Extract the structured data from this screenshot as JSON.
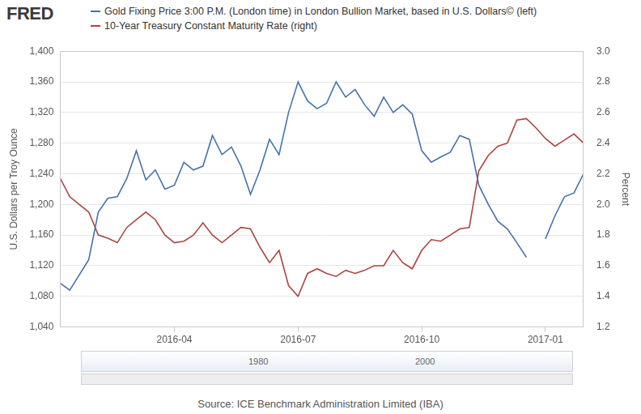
{
  "chart_data": {
    "type": "line",
    "logo": "FRED",
    "categories": [
      null,
      null,
      null,
      null,
      null,
      null,
      null,
      null,
      null,
      null,
      null,
      null,
      "2016-04",
      null,
      null,
      null,
      null,
      null,
      null,
      null,
      null,
      null,
      null,
      null,
      null,
      "2016-07",
      null,
      null,
      null,
      null,
      null,
      null,
      null,
      null,
      null,
      null,
      null,
      null,
      "2016-10",
      null,
      null,
      null,
      null,
      null,
      null,
      null,
      null,
      null,
      null,
      null,
      null,
      "2017-01",
      null,
      null,
      null,
      null
    ],
    "series": [
      {
        "name": "Gold Fixing Price 3:00 P.M. (London time) in London Bullion Market, based in U.S. Dollars© (left)",
        "color": "#4572a7",
        "values": [
          1097,
          1088,
          1108,
          1128,
          1190,
          1208,
          1210,
          1234,
          1270,
          1232,
          1245,
          1220,
          1225,
          1255,
          1245,
          1250,
          1290,
          1265,
          1275,
          1250,
          1213,
          1245,
          1285,
          1265,
          1320,
          1360,
          1335,
          1325,
          1332,
          1360,
          1340,
          1350,
          1330,
          1315,
          1340,
          1320,
          1330,
          1318,
          1270,
          1255,
          1262,
          1268,
          1290,
          1285,
          1225,
          1200,
          1178,
          1168,
          1150,
          1131,
          null,
          1155,
          1185,
          1210,
          1215,
          1240
        ]
      },
      {
        "name": "10-Year Treasury Constant Maturity Rate (right)",
        "color": "#aa4643",
        "axis": "y2",
        "values": [
          2.17,
          2.05,
          2.0,
          1.95,
          1.8,
          1.78,
          1.75,
          1.85,
          1.9,
          1.95,
          1.9,
          1.8,
          1.75,
          1.76,
          1.8,
          1.88,
          1.8,
          1.75,
          1.8,
          1.85,
          1.84,
          1.72,
          1.62,
          1.7,
          1.47,
          1.4,
          1.55,
          1.58,
          1.55,
          1.53,
          1.57,
          1.55,
          1.57,
          1.6,
          1.6,
          1.7,
          1.62,
          1.58,
          1.7,
          1.77,
          1.76,
          1.8,
          1.84,
          1.85,
          2.22,
          2.32,
          2.38,
          2.4,
          2.55,
          2.56,
          2.5,
          2.43,
          2.38,
          2.42,
          2.46,
          2.4
        ]
      }
    ],
    "ylabel": "U.S. Dollars per Troy Ounce",
    "y2label": "Percent",
    "ylim": [
      1040,
      1400
    ],
    "yticks": [
      {
        "value": 1040,
        "label": "1,040"
      },
      {
        "value": 1080,
        "label": "1,080"
      },
      {
        "value": 1120,
        "label": "1,120"
      },
      {
        "value": 1160,
        "label": "1,160"
      },
      {
        "value": 1200,
        "label": "1,200"
      },
      {
        "value": 1240,
        "label": "1,240"
      },
      {
        "value": 1280,
        "label": "1,280"
      },
      {
        "value": 1320,
        "label": "1,320"
      },
      {
        "value": 1360,
        "label": "1,360"
      },
      {
        "value": 1400,
        "label": "1,400"
      }
    ],
    "y2lim": [
      1.2,
      3.0
    ],
    "y2ticks": [
      1.2,
      1.4,
      1.6,
      1.8,
      {
        "value": 2,
        "label": "2.0"
      },
      2.2,
      2.4,
      2.6,
      2.8,
      {
        "value": 3,
        "label": "3.0"
      }
    ],
    "grid": true,
    "legend": "top-left",
    "navigator_labels": [
      "1980",
      "2000"
    ],
    "source": "Source: ICE Benchmark Administration Limited (IBA)"
  }
}
